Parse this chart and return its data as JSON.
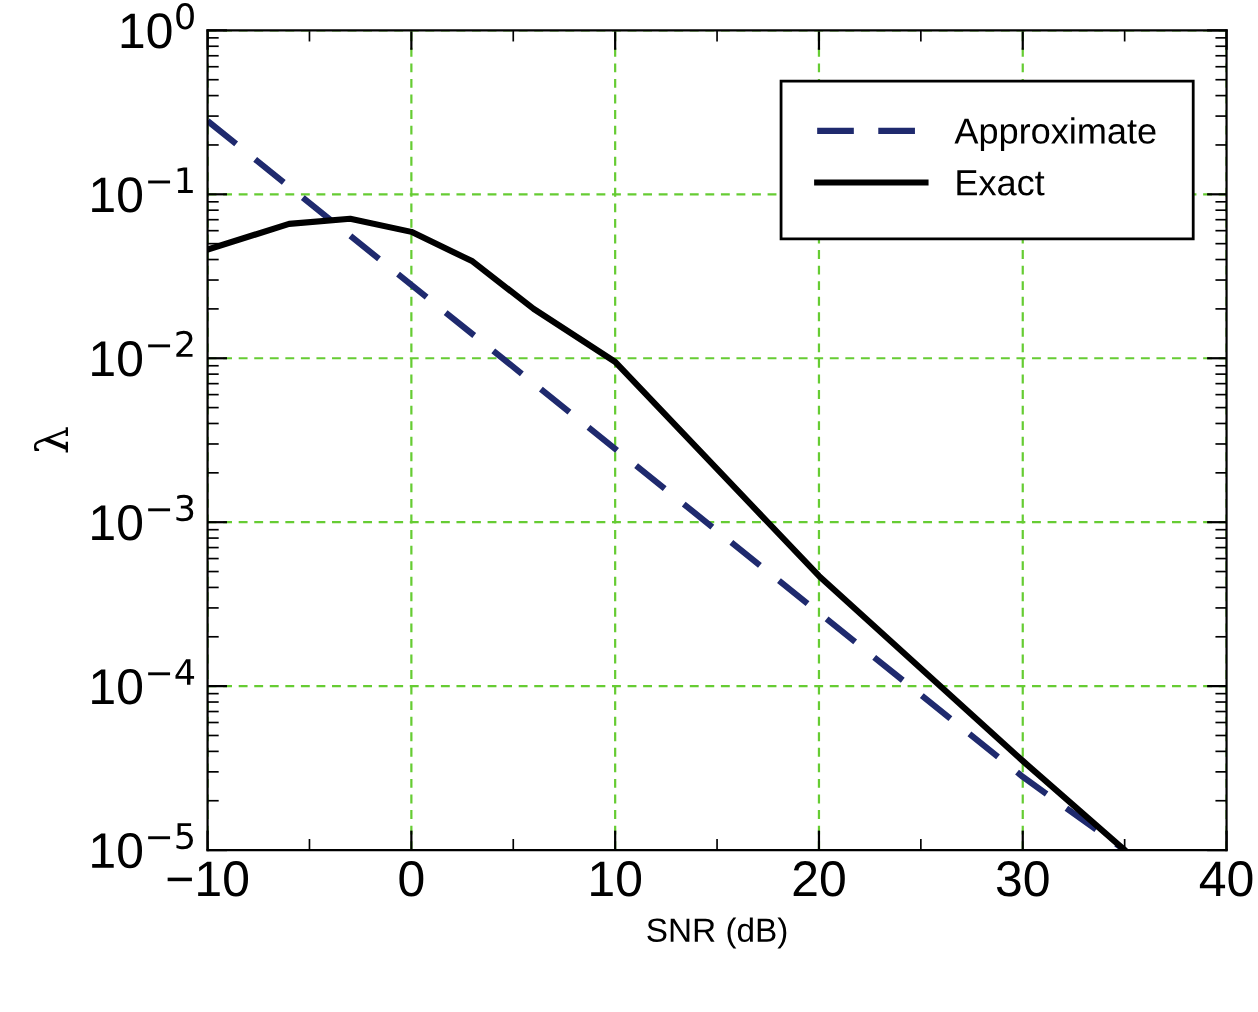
{
  "chart_data": {
    "type": "line",
    "xlabel": "SNR (dB)",
    "ylabel": "λ",
    "log": "y",
    "grid": true,
    "legend": "top right",
    "xlim": [
      -10,
      40
    ],
    "xticks": [
      {
        "value": -10,
        "label": "−10"
      },
      {
        "value": -5,
        "label": null
      },
      0,
      {
        "value": 5,
        "label": null
      },
      10,
      {
        "value": 15,
        "label": null
      },
      20,
      {
        "value": 25,
        "label": null
      },
      30,
      {
        "value": 35,
        "label": null
      },
      40
    ],
    "ylim": [
      1e-05,
      1
    ],
    "yticks": [
      {
        "value": 1,
        "label": "10$^{0}$"
      },
      {
        "value": 0.1,
        "label": "10$^{−1}$"
      },
      {
        "value": 0.01,
        "label": "10$^{−2}$"
      },
      {
        "value": 0.001,
        "label": "10$^{−3}$"
      },
      {
        "value": 0.0001,
        "label": "10$^{−4}$"
      },
      {
        "value": 1e-05,
        "label": "10$^{−5}$"
      }
    ],
    "series": [
      {
        "name": "Approximate",
        "color": "#1f2a6e",
        "line_style": "dashed",
        "x": [
          -10,
          0,
          10,
          20,
          30,
          35
        ],
        "values": [
          0.28,
          0.028,
          0.0028,
          0.00028,
          2.8e-05,
          1e-05
        ]
      },
      {
        "name": "Exact",
        "color": "#000000",
        "line_style": "solid",
        "x": [
          -10,
          -6,
          -3,
          0,
          3,
          6,
          10,
          20,
          30,
          35
        ],
        "values": [
          0.046,
          0.066,
          0.071,
          0.059,
          0.039,
          0.02,
          0.0095,
          0.00047,
          3.5e-05,
          1e-05
        ]
      }
    ]
  }
}
